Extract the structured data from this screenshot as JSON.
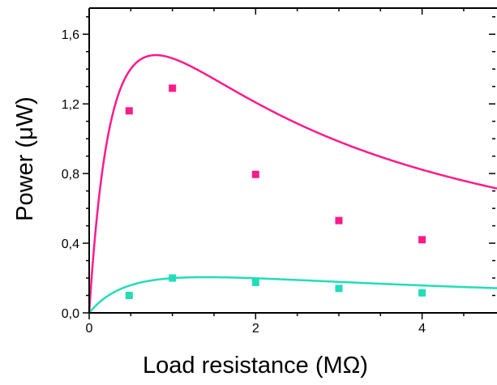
{
  "chart_data": {
    "type": "scatter",
    "xlabel": "Load resistance (MΩ)",
    "ylabel": "Power (μW)",
    "xlim": [
      0,
      4.9
    ],
    "ylim": [
      0,
      1.75
    ],
    "x_ticks": [
      "0",
      "2",
      "4"
    ],
    "y_ticks": [
      "0,0",
      "0,4",
      "0,8",
      "1,2",
      "1,6"
    ],
    "x_tick_values": [
      0,
      2,
      4
    ],
    "y_tick_values": [
      0,
      0.4,
      0.8,
      1.2,
      1.6
    ],
    "grid": false,
    "series": [
      {
        "color": "#ff1a8c",
        "marker": "square",
        "points": [
          {
            "x": 0.48,
            "y": 1.16
          },
          {
            "x": 1.0,
            "y": 1.29
          },
          {
            "x": 2.0,
            "y": 0.795
          },
          {
            "x": 3.0,
            "y": 0.53
          },
          {
            "x": 4.0,
            "y": 0.42
          }
        ],
        "fit_curve": {
          "peak_x": 0.8,
          "peak_y": 1.48
        }
      },
      {
        "color": "#22ddb8",
        "marker": "square",
        "points": [
          {
            "x": 0.48,
            "y": 0.1
          },
          {
            "x": 1.0,
            "y": 0.2
          },
          {
            "x": 2.0,
            "y": 0.175
          },
          {
            "x": 3.0,
            "y": 0.14
          },
          {
            "x": 4.0,
            "y": 0.115
          }
        ],
        "fit_curve": {
          "peak_x": 1.4,
          "peak_y": 0.205
        }
      }
    ]
  }
}
